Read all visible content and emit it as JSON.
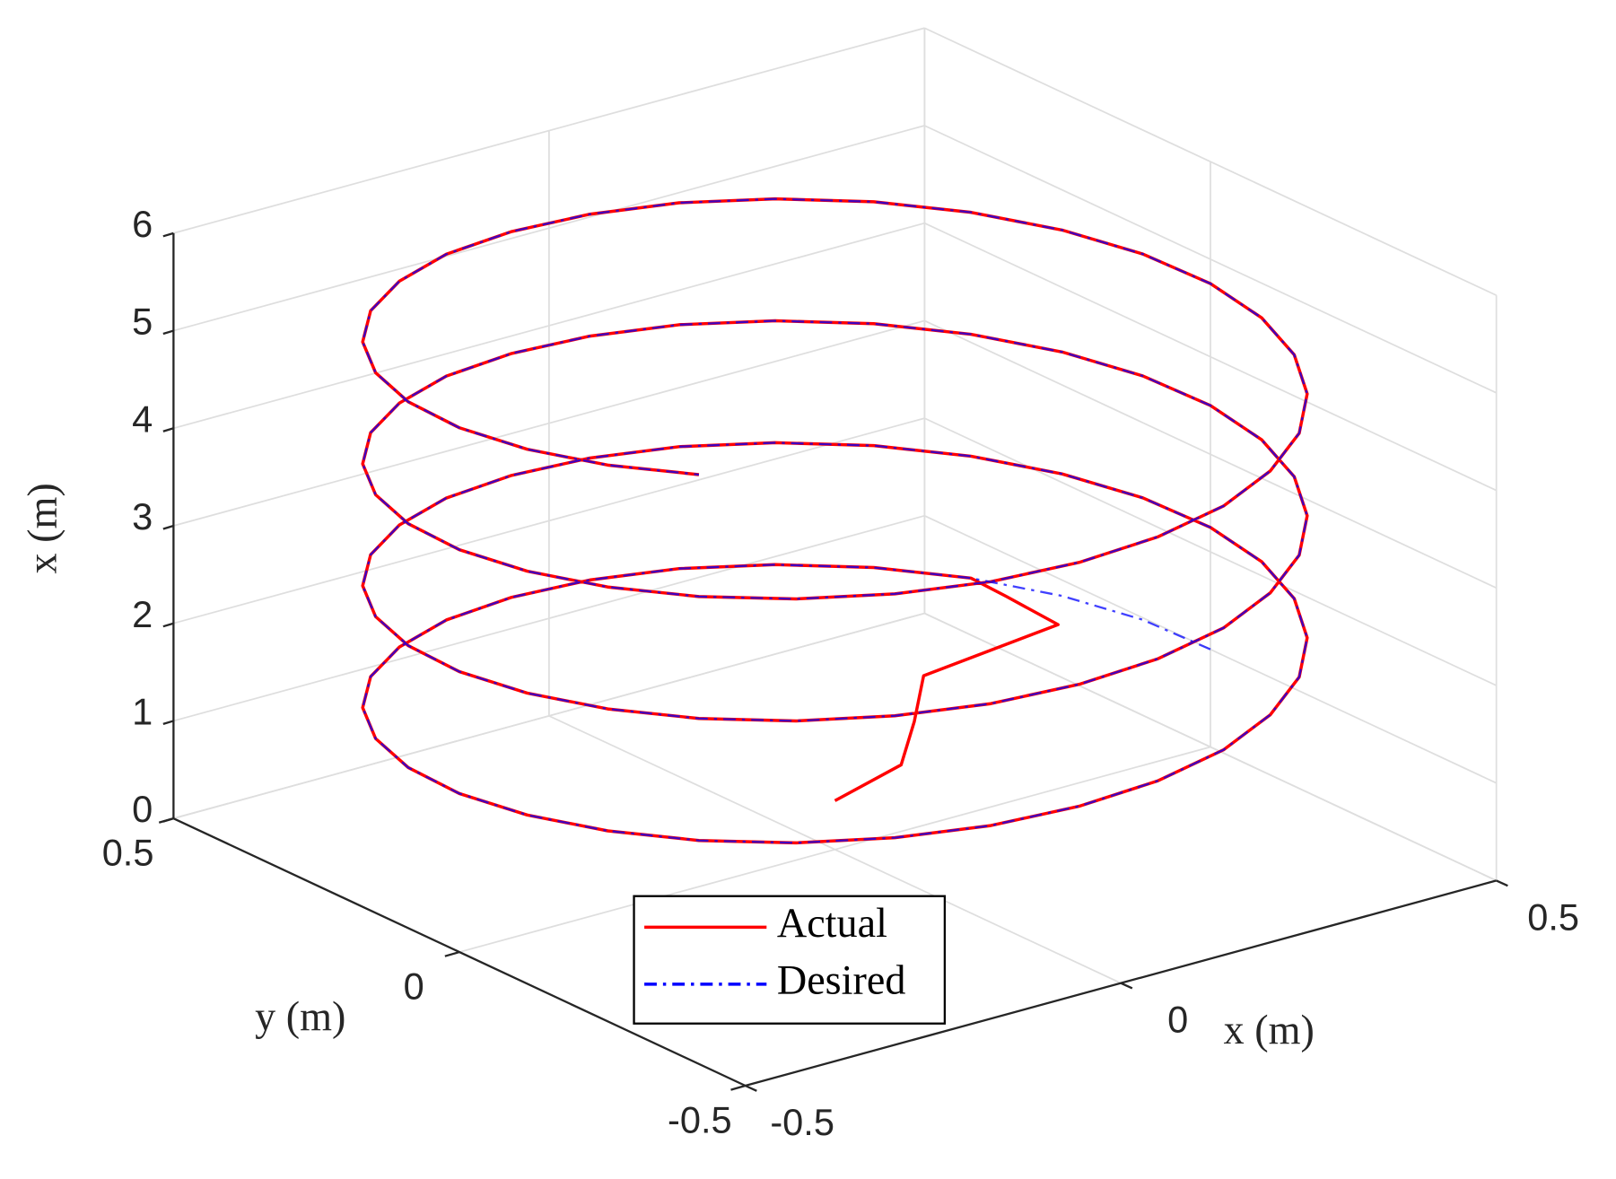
{
  "chart_data": {
    "type": "line3d",
    "xlabel": "x (m)",
    "ylabel": "y (m)",
    "zlabel": "x (m)",
    "xlim": [
      -0.5,
      0.5
    ],
    "ylim": [
      -0.5,
      0.5
    ],
    "zlim": [
      0,
      6
    ],
    "xticks": [
      -0.5,
      0,
      0.5
    ],
    "yticks": [
      -0.5,
      0,
      0.5
    ],
    "zticks": [
      0,
      1,
      2,
      3,
      4,
      5,
      6
    ],
    "grid": true,
    "series": [
      {
        "name": "Actual",
        "color": "#ff0000",
        "linestyle": "solid",
        "x": [
          0,
          0.05,
          0.06,
          0.08,
          0.32,
          0.38,
          0.405,
          0.335,
          0.25,
          0.155,
          0.052,
          -0.052,
          -0.155,
          -0.25,
          -0.335,
          -0.405,
          -0.457,
          -0.489,
          -0.5,
          -0.489,
          -0.457,
          -0.405,
          -0.335,
          -0.25,
          -0.155,
          -0.052,
          0.052,
          0.155,
          0.25,
          0.335,
          0.405,
          0.457,
          0.489,
          0.5,
          0.489,
          0.457,
          0.405,
          0.335,
          0.25,
          0.155,
          0.052,
          -0.052,
          -0.155,
          -0.25,
          -0.335,
          -0.405,
          -0.457,
          -0.489,
          -0.5,
          -0.489,
          -0.457,
          -0.405,
          -0.335,
          -0.25,
          -0.155,
          -0.052,
          0.052,
          0.155,
          0.25,
          0.335,
          0.405,
          0.457,
          0.489,
          0.5,
          0.489,
          0.457,
          0.405,
          0.335,
          0.25,
          0.155,
          0.052,
          -0.052,
          -0.155,
          -0.25,
          -0.335,
          -0.405,
          -0.457,
          -0.489,
          -0.5,
          -0.489,
          -0.457,
          -0.405,
          -0.335,
          -0.25,
          -0.155,
          -0.052,
          0.052,
          0.155,
          0.25,
          0.335,
          0.405,
          0.457,
          0.489,
          0.5,
          0.489,
          0.457,
          0.405,
          0.335,
          0.25,
          0.155,
          0.052,
          -0.052,
          -0.155,
          -0.25,
          -0.335,
          -0.405,
          -0.457,
          -0.489,
          -0.5,
          -0.489,
          -0.457,
          -0.405
        ],
        "y": [
          0,
          -0.05,
          -0.06,
          -0.05,
          0.03,
          0.2,
          0.294,
          0.372,
          0.433,
          0.476,
          0.497,
          0.497,
          0.476,
          0.433,
          0.372,
          0.294,
          0.203,
          0.104,
          0,
          -0.104,
          -0.203,
          -0.294,
          -0.372,
          -0.433,
          -0.476,
          -0.497,
          -0.497,
          -0.476,
          -0.433,
          -0.372,
          -0.294,
          -0.203,
          -0.104,
          0,
          0.104,
          0.203,
          0.294,
          0.372,
          0.433,
          0.476,
          0.497,
          0.497,
          0.476,
          0.433,
          0.372,
          0.294,
          0.203,
          0.104,
          0,
          -0.104,
          -0.203,
          -0.294,
          -0.372,
          -0.433,
          -0.476,
          -0.497,
          -0.497,
          -0.476,
          -0.433,
          -0.372,
          -0.294,
          -0.203,
          -0.104,
          0,
          0.104,
          0.203,
          0.294,
          0.372,
          0.433,
          0.476,
          0.497,
          0.497,
          0.476,
          0.433,
          0.372,
          0.294,
          0.203,
          0.104,
          0,
          -0.104,
          -0.203,
          -0.294,
          -0.372,
          -0.433,
          -0.476,
          -0.497,
          -0.497,
          -0.476,
          -0.433,
          -0.372,
          -0.294,
          -0.203,
          -0.104,
          0,
          0.104,
          0.203,
          0.294,
          0.372,
          0.433,
          0.476,
          0.497,
          0.497,
          0.476,
          0.433,
          0.372,
          0.294,
          0.203,
          0.104,
          0,
          -0.104,
          -0.203,
          -0.294
        ],
        "z": [
          0.5,
          0.9,
          1.35,
          1.75,
          1.55,
          1.25,
          1.125,
          1.167,
          1.208,
          1.25,
          1.292,
          1.333,
          1.375,
          1.417,
          1.458,
          1.5,
          1.542,
          1.583,
          1.625,
          1.667,
          1.708,
          1.75,
          1.792,
          1.833,
          1.875,
          1.917,
          1.958,
          2,
          2.042,
          2.083,
          2.125,
          2.167,
          2.208,
          2.25,
          2.292,
          2.333,
          2.375,
          2.417,
          2.458,
          2.5,
          2.542,
          2.583,
          2.625,
          2.667,
          2.708,
          2.75,
          2.792,
          2.833,
          2.875,
          2.917,
          2.958,
          3,
          3.042,
          3.083,
          3.125,
          3.167,
          3.208,
          3.25,
          3.292,
          3.333,
          3.375,
          3.417,
          3.458,
          3.5,
          3.542,
          3.583,
          3.625,
          3.667,
          3.708,
          3.75,
          3.792,
          3.833,
          3.875,
          3.917,
          3.958,
          4,
          4.042,
          4.083,
          4.125,
          4.167,
          4.208,
          4.25,
          4.292,
          4.333,
          4.375,
          4.417,
          4.458,
          4.5,
          4.542,
          4.583,
          4.625,
          4.667,
          4.708,
          4.75,
          4.792,
          4.833,
          4.875,
          4.917,
          4.958,
          5,
          5.042,
          5.083,
          5.125,
          5.167,
          5.208,
          5.25,
          5.292,
          5.333,
          5.375,
          5.417,
          5.458,
          5.5
        ]
      },
      {
        "name": "Desired",
        "color": "#0000ff",
        "linestyle": "dashdot",
        "x": [
          0.5,
          0.489,
          0.457,
          0.405,
          0.335,
          0.25,
          0.155,
          0.052,
          -0.052,
          -0.155,
          -0.25,
          -0.335,
          -0.405,
          -0.457,
          -0.489,
          -0.5,
          -0.489,
          -0.457,
          -0.405,
          -0.335,
          -0.25,
          -0.155,
          -0.052,
          0.052,
          0.155,
          0.25,
          0.335,
          0.405,
          0.457,
          0.489,
          0.5,
          0.489,
          0.457,
          0.405,
          0.335,
          0.25,
          0.155,
          0.052,
          -0.052,
          -0.155,
          -0.25,
          -0.335,
          -0.405,
          -0.457,
          -0.489,
          -0.5,
          -0.489,
          -0.457,
          -0.405,
          -0.335,
          -0.25,
          -0.155,
          -0.052,
          0.052,
          0.155,
          0.25,
          0.335,
          0.405,
          0.457,
          0.489,
          0.5,
          0.489,
          0.457,
          0.405,
          0.335,
          0.25,
          0.155,
          0.052,
          -0.052,
          -0.155,
          -0.25,
          -0.335,
          -0.405,
          -0.457,
          -0.489,
          -0.5,
          -0.489,
          -0.457,
          -0.405,
          -0.335,
          -0.25,
          -0.155,
          -0.052,
          0.052,
          0.155,
          0.25,
          0.335,
          0.405,
          0.457,
          0.489,
          0.5,
          0.489,
          0.457,
          0.405,
          0.335,
          0.25,
          0.155,
          0.052,
          -0.052,
          -0.155,
          -0.25,
          -0.335,
          -0.405,
          -0.457,
          -0.489,
          -0.5,
          -0.489,
          -0.457,
          -0.405
        ],
        "y": [
          0,
          0.104,
          0.203,
          0.294,
          0.372,
          0.433,
          0.476,
          0.497,
          0.497,
          0.476,
          0.433,
          0.372,
          0.294,
          0.203,
          0.104,
          0,
          -0.104,
          -0.203,
          -0.294,
          -0.372,
          -0.433,
          -0.476,
          -0.497,
          -0.497,
          -0.476,
          -0.433,
          -0.372,
          -0.294,
          -0.203,
          -0.104,
          0,
          0.104,
          0.203,
          0.294,
          0.372,
          0.433,
          0.476,
          0.497,
          0.497,
          0.476,
          0.433,
          0.372,
          0.294,
          0.203,
          0.104,
          0,
          -0.104,
          -0.203,
          -0.294,
          -0.372,
          -0.433,
          -0.476,
          -0.497,
          -0.497,
          -0.476,
          -0.433,
          -0.372,
          -0.294,
          -0.203,
          -0.104,
          0,
          0.104,
          0.203,
          0.294,
          0.372,
          0.433,
          0.476,
          0.497,
          0.497,
          0.476,
          0.433,
          0.372,
          0.294,
          0.203,
          0.104,
          0,
          -0.104,
          -0.203,
          -0.294,
          -0.372,
          -0.433,
          -0.476,
          -0.497,
          -0.497,
          -0.476,
          -0.433,
          -0.372,
          -0.294,
          -0.203,
          -0.104,
          0,
          0.104,
          0.203,
          0.294,
          0.372,
          0.433,
          0.476,
          0.497,
          0.497,
          0.476,
          0.433,
          0.372,
          0.294,
          0.203,
          0.104,
          0,
          -0.104,
          -0.203,
          -0.294
        ],
        "z": [
          1,
          1.042,
          1.083,
          1.125,
          1.167,
          1.208,
          1.25,
          1.292,
          1.333,
          1.375,
          1.417,
          1.458,
          1.5,
          1.542,
          1.583,
          1.625,
          1.667,
          1.708,
          1.75,
          1.792,
          1.833,
          1.875,
          1.917,
          1.958,
          2,
          2.042,
          2.083,
          2.125,
          2.167,
          2.208,
          2.25,
          2.292,
          2.333,
          2.375,
          2.417,
          2.458,
          2.5,
          2.542,
          2.583,
          2.625,
          2.667,
          2.708,
          2.75,
          2.792,
          2.833,
          2.875,
          2.917,
          2.958,
          3,
          3.042,
          3.083,
          3.125,
          3.167,
          3.208,
          3.25,
          3.292,
          3.333,
          3.375,
          3.417,
          3.458,
          3.5,
          3.542,
          3.583,
          3.625,
          3.667,
          3.708,
          3.75,
          3.792,
          3.833,
          3.875,
          3.917,
          3.958,
          4,
          4.042,
          4.083,
          4.125,
          4.167,
          4.208,
          4.25,
          4.292,
          4.333,
          4.375,
          4.417,
          4.458,
          4.5,
          4.542,
          4.583,
          4.625,
          4.667,
          4.708,
          4.75,
          4.792,
          4.833,
          4.875,
          4.917,
          4.958,
          5,
          5.042,
          5.083,
          5.125,
          5.167,
          5.208,
          5.25,
          5.292,
          5.333,
          5.375,
          5.417,
          5.458,
          5.5
        ]
      }
    ]
  }
}
